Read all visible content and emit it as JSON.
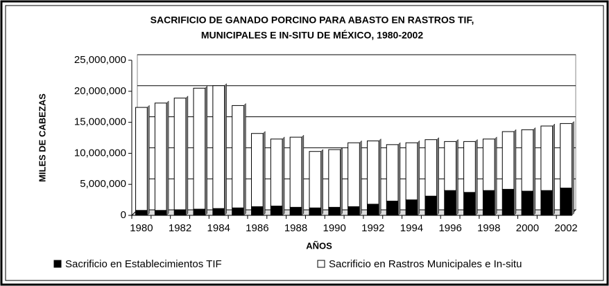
{
  "chart_data": {
    "type": "stacked-bar",
    "title": [
      "SACRIFICIO DE GANADO PORCINO PARA ABASTO EN RASTROS TIF,",
      "MUNICIPALES E IN-SITU DE MÉXICO, 1980-2002"
    ],
    "ylabel": "MILES DE CABEZAS",
    "xlabel": "AÑOS",
    "categories": [
      "1980",
      null,
      "1982",
      null,
      "1984",
      null,
      "1986",
      null,
      "1988",
      null,
      "1990",
      null,
      "1992",
      null,
      "1994",
      null,
      "1996",
      null,
      "1998",
      null,
      "2000",
      null,
      "2002"
    ],
    "series": [
      {
        "name": "Sacrificio en Establecimientos TIF",
        "color": "#000000",
        "values": [
          800000,
          800000,
          900000,
          1000000,
          1100000,
          1200000,
          1400000,
          1500000,
          1300000,
          1200000,
          1300000,
          1400000,
          1800000,
          2300000,
          2500000,
          3100000,
          4000000,
          3700000,
          4000000,
          4200000,
          3900000,
          4000000,
          4400000
        ]
      },
      {
        "name": "Sacrificio en Rastros Municipales e In-situ",
        "color": "#ffffff",
        "values": [
          16600000,
          17300000,
          18000000,
          19500000,
          19800000,
          16500000,
          11800000,
          10800000,
          11300000,
          9100000,
          9300000,
          10300000,
          10200000,
          9100000,
          9200000,
          9100000,
          7900000,
          8200000,
          8300000,
          9300000,
          9900000,
          10400000,
          10400000
        ]
      }
    ],
    "ylim": [
      0,
      25000000
    ],
    "yticks": [
      0,
      {
        "value": 5000000,
        "label": "5,000,000"
      },
      {
        "value": 10000000,
        "label": "10,000,000"
      },
      {
        "value": 15000000,
        "label": "15,000,000"
      },
      {
        "value": 20000000,
        "label": "20,000,000"
      },
      {
        "value": 25000000,
        "label": "25,000,000"
      }
    ],
    "grid": true
  }
}
